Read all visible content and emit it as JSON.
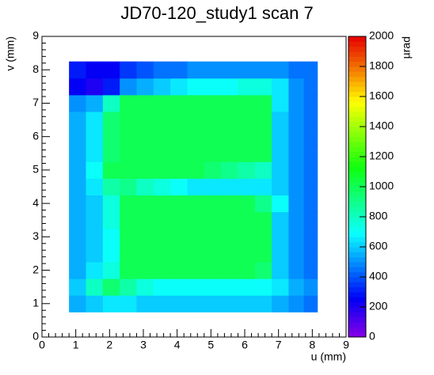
{
  "chart_data": {
    "type": "heatmap",
    "title": "JD70-120_study1 scan 7",
    "xlabel": "u (mm)",
    "ylabel": "v (mm)",
    "zlabel": "µrad",
    "colormap": "rainbow",
    "x": [
      1.05,
      1.55,
      2.05,
      2.55,
      3.05,
      3.55,
      4.05,
      4.55,
      5.05,
      5.55,
      6.05,
      6.55,
      7.05,
      7.55,
      7.95
    ],
    "y": [
      1.0,
      1.5,
      2.0,
      2.5,
      3.0,
      3.5,
      4.0,
      4.5,
      5.0,
      5.5,
      6.0,
      6.5,
      7.0,
      7.5,
      8.0
    ],
    "z": [
      [
        550,
        600,
        650,
        650,
        600,
        600,
        600,
        600,
        600,
        600,
        600,
        600,
        550,
        500,
        450
      ],
      [
        600,
        800,
        950,
        850,
        750,
        700,
        700,
        700,
        700,
        700,
        700,
        700,
        650,
        550,
        500
      ],
      [
        550,
        650,
        750,
        1000,
        1000,
        1000,
        1000,
        1000,
        1000,
        1000,
        1000,
        950,
        600,
        500,
        450
      ],
      [
        550,
        600,
        700,
        1000,
        1000,
        1000,
        1000,
        1000,
        1000,
        1000,
        1000,
        1000,
        600,
        500,
        450
      ],
      [
        550,
        600,
        700,
        1000,
        1000,
        1000,
        1000,
        1000,
        1000,
        1000,
        1000,
        1000,
        600,
        500,
        450
      ],
      [
        550,
        600,
        750,
        1000,
        1000,
        1000,
        1000,
        1000,
        1000,
        1000,
        1000,
        1000,
        600,
        500,
        450
      ],
      [
        550,
        600,
        750,
        1000,
        1000,
        1000,
        1000,
        1000,
        1000,
        1000,
        1000,
        900,
        700,
        500,
        450
      ],
      [
        550,
        650,
        850,
        900,
        800,
        750,
        700,
        650,
        650,
        650,
        650,
        650,
        600,
        500,
        450
      ],
      [
        550,
        700,
        1000,
        1000,
        1000,
        1000,
        1000,
        1000,
        950,
        900,
        850,
        800,
        600,
        500,
        450
      ],
      [
        550,
        650,
        950,
        1000,
        1000,
        1000,
        1000,
        1000,
        1000,
        1000,
        1000,
        1000,
        600,
        500,
        450
      ],
      [
        550,
        650,
        950,
        1000,
        1000,
        1000,
        1000,
        1000,
        1000,
        1000,
        1000,
        1000,
        600,
        500,
        450
      ],
      [
        550,
        650,
        950,
        1000,
        1000,
        1000,
        1000,
        1000,
        1000,
        1000,
        1000,
        1000,
        600,
        500,
        450
      ],
      [
        500,
        550,
        800,
        1000,
        1000,
        1000,
        1000,
        1000,
        1000,
        1000,
        1000,
        1000,
        650,
        500,
        450
      ],
      [
        250,
        200,
        300,
        500,
        550,
        600,
        650,
        700,
        700,
        700,
        750,
        750,
        650,
        500,
        450
      ],
      [
        300,
        250,
        250,
        350,
        400,
        450,
        450,
        500,
        500,
        500,
        500,
        500,
        500,
        450,
        450
      ]
    ],
    "xlim": [
      0,
      9
    ],
    "ylim": [
      0,
      9
    ],
    "zlim": [
      0,
      2000
    ],
    "xticks": [
      0,
      1,
      2,
      3,
      4,
      5,
      6,
      7,
      8,
      9
    ],
    "yticks": [
      0,
      1,
      2,
      3,
      4,
      5,
      6,
      7,
      8,
      9
    ],
    "zticks": [
      0,
      200,
      400,
      600,
      800,
      1000,
      1200,
      1400,
      1600,
      1800,
      2000
    ]
  }
}
